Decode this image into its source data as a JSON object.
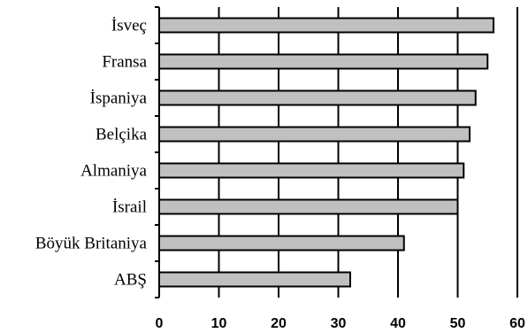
{
  "chart_data": {
    "type": "bar",
    "orientation": "horizontal",
    "title": "",
    "xlabel": "",
    "ylabel": "",
    "categories": [
      "İsveç",
      "Fransa",
      "İspaniya",
      "Belçika",
      "Almaniya",
      "İsrail",
      "Böyük Britaniya",
      "ABŞ"
    ],
    "values": [
      56,
      55,
      53,
      52,
      51,
      50,
      41,
      32
    ],
    "xlim": [
      0,
      60
    ],
    "xticks": [
      "0",
      "10",
      "20",
      "30",
      "40",
      "50",
      "60"
    ],
    "grid": "vertical",
    "legend": "none",
    "bar_color": "#c0c0c0",
    "bar_edge_color": "#000000"
  }
}
